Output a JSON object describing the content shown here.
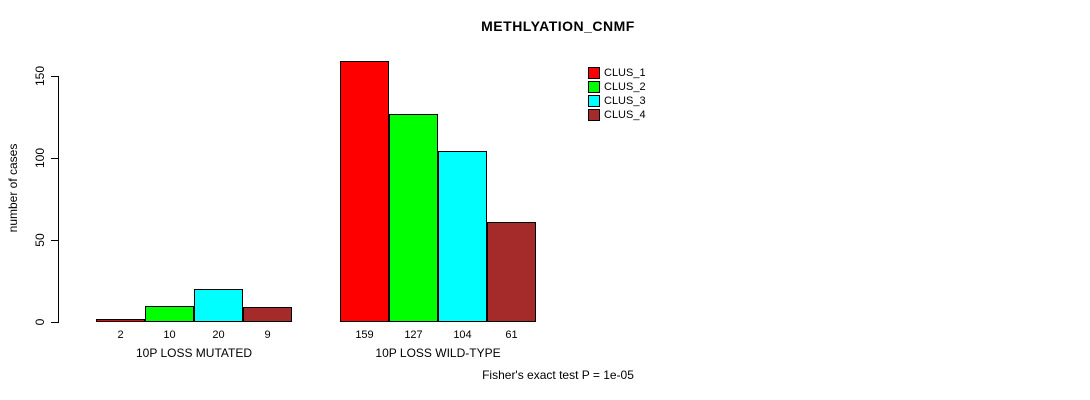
{
  "chart_data": {
    "type": "bar",
    "title": "METHLYATION_CNMF",
    "ylabel": "number of cases",
    "xlabel": "",
    "yticks": [
      0,
      50,
      100,
      150
    ],
    "ylim": [
      0,
      160
    ],
    "grid": false,
    "legend_position": "top-right",
    "categories": [
      "10P LOSS MUTATED",
      "10P LOSS WILD-TYPE"
    ],
    "groups": [
      {
        "label": "10P LOSS MUTATED",
        "values": [
          2,
          10,
          20,
          9
        ]
      },
      {
        "label": "10P LOSS WILD-TYPE",
        "values": [
          159,
          127,
          104,
          61
        ]
      }
    ],
    "series": [
      {
        "name": "CLUS_1",
        "color": "#ff0000"
      },
      {
        "name": "CLUS_2",
        "color": "#00ff00"
      },
      {
        "name": "CLUS_3",
        "color": "#00ffff"
      },
      {
        "name": "CLUS_4",
        "color": "#a52a2a"
      }
    ],
    "annotation": "Fisher's exact test P = 1e-05"
  }
}
